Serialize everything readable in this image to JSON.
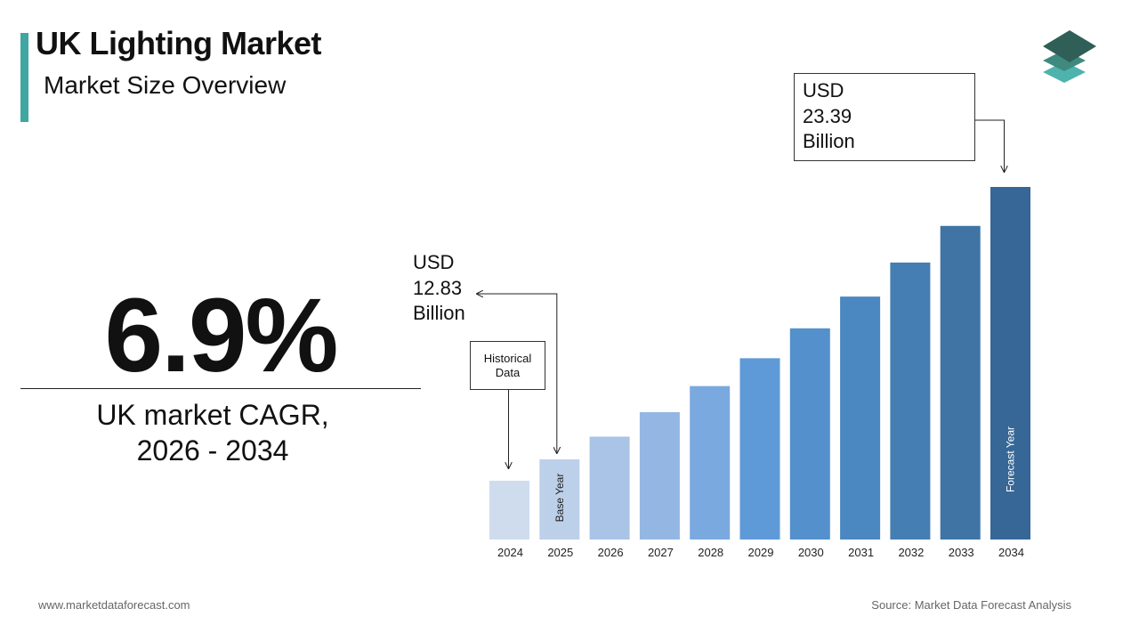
{
  "header": {
    "title": "UK Lighting Market",
    "subtitle": "Market Size Overview"
  },
  "cagr": {
    "value": "6.9%",
    "label_line1": "UK market CAGR,",
    "label_line2": "2026 - 2034"
  },
  "callouts": {
    "start": {
      "line1": "USD",
      "line2": "12.83",
      "line3": "Billion"
    },
    "end": {
      "line1": "USD",
      "line2": "23.39",
      "line3": "Billion"
    },
    "historical": {
      "line1": "Historical",
      "line2": "Data"
    }
  },
  "footer": {
    "website": "www.marketdataforecast.com",
    "source": "Source: Market Data Forecast Analysis"
  },
  "colors": {
    "accent": "#3fa6a2",
    "logo_top": "#2f5f56",
    "logo_mid": "#3f8a7f",
    "logo_bottom": "#4fb3ad"
  },
  "chart_data": {
    "type": "bar",
    "categories": [
      "2024",
      "2025",
      "2026",
      "2027",
      "2028",
      "2029",
      "2030",
      "2031",
      "2032",
      "2033",
      "2034"
    ],
    "values": [
      12.0,
      12.83,
      13.71,
      14.66,
      15.67,
      16.75,
      17.91,
      19.14,
      20.46,
      21.88,
      23.39
    ],
    "unit": "USD Billion",
    "bar_labels": {
      "2025": "Base Year",
      "2034": "Forecast Year"
    },
    "bar_colors": [
      "#cfdcee",
      "#bdd0ea",
      "#a9c4e6",
      "#93b7e2",
      "#7aa9df",
      "#5f9ad8",
      "#5390cc",
      "#4b87c0",
      "#457eb3",
      "#3f74a5",
      "#376796"
    ],
    "grid": false,
    "legend": "none"
  }
}
